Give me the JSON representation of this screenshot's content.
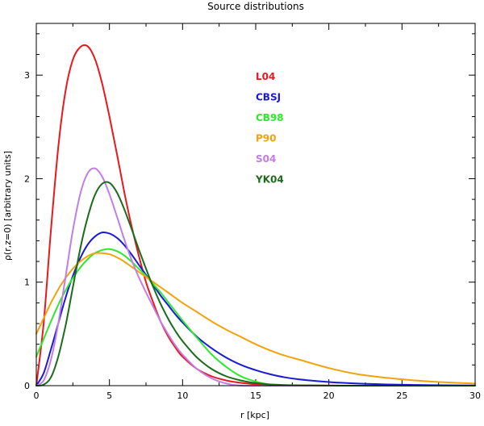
{
  "chart_data": {
    "type": "line",
    "title": "Source distributions",
    "xlabel": "r [kpc]",
    "ylabel": "ρ(r,z=0) [arbitrary units]",
    "xlim": [
      0,
      30
    ],
    "ylim": [
      0,
      3.5
    ],
    "xticks": [
      0,
      5,
      10,
      15,
      20,
      25,
      30
    ],
    "xtick_labels": [
      "0",
      "5",
      "10",
      "15",
      "20",
      "25",
      "30"
    ],
    "yticks": [
      0,
      1,
      2,
      3
    ],
    "ytick_labels": [
      "0",
      "1",
      "2",
      "3"
    ],
    "grid": false,
    "legend_position": "top-center",
    "x": [
      0,
      0.5,
      1,
      1.5,
      2,
      2.5,
      3,
      3.5,
      4,
      4.5,
      5,
      5.5,
      6,
      6.5,
      7,
      7.5,
      8,
      8.5,
      9,
      9.5,
      10,
      11,
      12,
      13,
      14,
      15,
      16,
      17,
      18,
      20,
      22,
      24,
      26,
      28,
      30
    ],
    "series": [
      {
        "name": "L04",
        "color": "#e8181c",
        "values": [
          0.0,
          0.6,
          1.5,
          2.3,
          2.85,
          3.15,
          3.27,
          3.28,
          3.16,
          2.92,
          2.6,
          2.25,
          1.88,
          1.55,
          1.26,
          1.0,
          0.8,
          0.62,
          0.48,
          0.37,
          0.28,
          0.16,
          0.09,
          0.05,
          0.027,
          0.014,
          0.008,
          0.004,
          0.002,
          0.0006,
          0.0002,
          0.0,
          0.0,
          0.0,
          0.0
        ]
      },
      {
        "name": "CBSJ",
        "color": "#1a1ad6",
        "values": [
          0.0,
          0.12,
          0.35,
          0.6,
          0.85,
          1.06,
          1.23,
          1.36,
          1.44,
          1.48,
          1.47,
          1.43,
          1.36,
          1.27,
          1.17,
          1.07,
          0.97,
          0.87,
          0.78,
          0.69,
          0.61,
          0.47,
          0.36,
          0.27,
          0.2,
          0.15,
          0.11,
          0.08,
          0.06,
          0.035,
          0.02,
          0.012,
          0.007,
          0.004,
          0.002
        ]
      },
      {
        "name": "CB98",
        "color": "#2ee82e",
        "values": [
          0.28,
          0.45,
          0.62,
          0.78,
          0.92,
          1.04,
          1.14,
          1.22,
          1.28,
          1.31,
          1.32,
          1.3,
          1.26,
          1.2,
          1.13,
          1.06,
          0.98,
          0.9,
          0.81,
          0.72,
          0.63,
          0.46,
          0.3,
          0.18,
          0.09,
          0.04,
          0.01,
          0.0,
          0.0,
          0.0,
          0.0,
          0.0,
          0.0,
          0.0,
          0.0
        ]
      },
      {
        "name": "P90",
        "color": "#f2a20a",
        "values": [
          0.5,
          0.65,
          0.8,
          0.93,
          1.04,
          1.13,
          1.2,
          1.25,
          1.28,
          1.28,
          1.27,
          1.24,
          1.2,
          1.15,
          1.1,
          1.05,
          1.0,
          0.95,
          0.9,
          0.85,
          0.8,
          0.71,
          0.62,
          0.54,
          0.47,
          0.4,
          0.34,
          0.29,
          0.25,
          0.17,
          0.11,
          0.075,
          0.05,
          0.032,
          0.02
        ]
      },
      {
        "name": "S04",
        "color": "#c27ee8",
        "values": [
          0.0,
          0.05,
          0.25,
          0.6,
          1.05,
          1.5,
          1.85,
          2.05,
          2.1,
          2.02,
          1.85,
          1.64,
          1.42,
          1.22,
          1.05,
          0.9,
          0.76,
          0.62,
          0.5,
          0.39,
          0.3,
          0.16,
          0.07,
          0.02,
          0.0,
          0.0,
          0.0,
          0.0,
          0.0,
          0.0,
          0.0,
          0.0,
          0.0,
          0.0,
          0.0
        ]
      },
      {
        "name": "YK04",
        "color": "#1a6b1a",
        "values": [
          0.0,
          0.01,
          0.08,
          0.28,
          0.58,
          0.95,
          1.32,
          1.62,
          1.84,
          1.95,
          1.96,
          1.87,
          1.71,
          1.52,
          1.32,
          1.13,
          0.95,
          0.79,
          0.65,
          0.53,
          0.43,
          0.27,
          0.16,
          0.09,
          0.05,
          0.025,
          0.012,
          0.006,
          0.003,
          0.001,
          0.0,
          0.0,
          0.0,
          0.0,
          0.0
        ]
      }
    ]
  }
}
